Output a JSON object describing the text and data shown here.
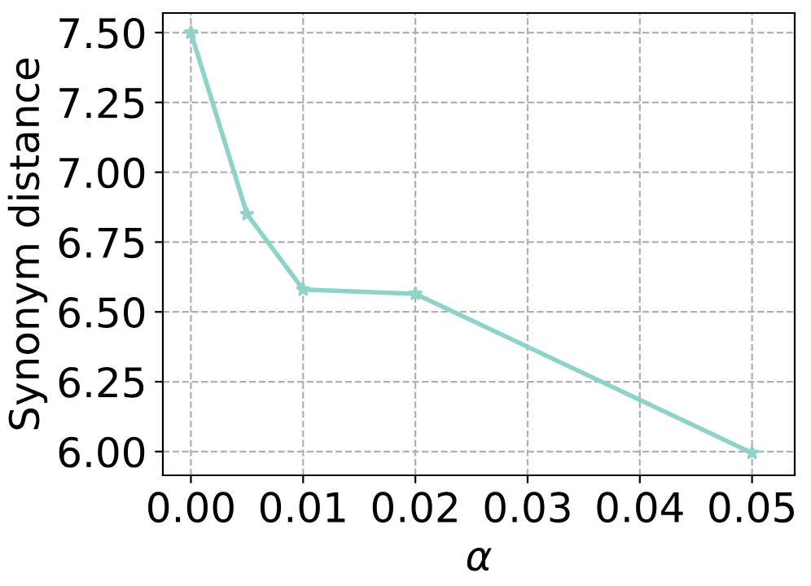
{
  "chart_data": {
    "type": "line",
    "xlabel": "α",
    "ylabel": "Synonym distance",
    "x": [
      0.0,
      0.005,
      0.01,
      0.02,
      0.05
    ],
    "series": [
      {
        "color": "#8dd3c7",
        "values": [
          7.5,
          6.85,
          6.58,
          6.565,
          5.995
        ]
      }
    ],
    "xlim": [
      -0.0025,
      0.0538
    ],
    "ylim": [
      5.915,
      7.57
    ],
    "xticks": [
      {
        "value": 0,
        "label": "0.00"
      },
      {
        "value": 0.01,
        "label": "0.01"
      },
      {
        "value": 0.02,
        "label": "0.02"
      },
      {
        "value": 0.03,
        "label": "0.03"
      },
      {
        "value": 0.04,
        "label": "0.04"
      },
      {
        "value": 0.05,
        "label": "0.05"
      }
    ],
    "yticks": [
      {
        "value": 6,
        "label": "6.00"
      },
      {
        "value": 6.25,
        "label": "6.25"
      },
      {
        "value": 6.5,
        "label": "6.50"
      },
      {
        "value": 6.75,
        "label": "6.75"
      },
      {
        "value": 7,
        "label": "7.00"
      },
      {
        "value": 7.25,
        "label": "7.25"
      },
      {
        "value": 7.5,
        "label": "7.50"
      }
    ],
    "grid": true,
    "marker": "star",
    "line_style": "solid"
  }
}
